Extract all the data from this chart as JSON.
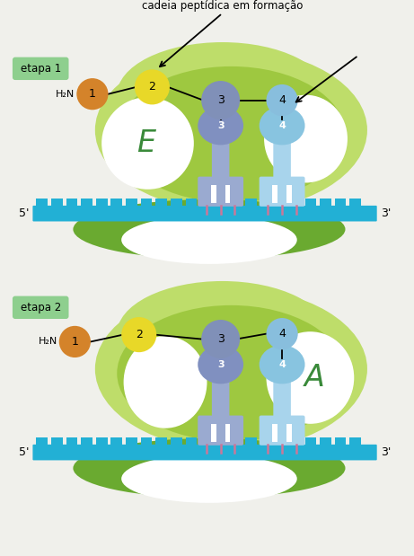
{
  "bg_color": "#f0f0eb",
  "title_text": "cadeia peptídica em formação",
  "etapa1_label": "etapa 1",
  "etapa2_label": "etapa 2",
  "label_bg": "#8ecf8e",
  "ribosome_outer": "#bedd6a",
  "ribosome_inner": "#9ec840",
  "mRNA_color": "#22b0d5",
  "bottom_color": "#6aaa30",
  "tRNA1_body": "#8090c0",
  "tRNA1_stem": "#9aaad0",
  "tRNA2_body": "#88c4e0",
  "tRNA2_stem": "#a8d4ec",
  "foot_color": "#cc7799",
  "aa1_color": "#d4832a",
  "aa2_color": "#e8d828",
  "aa3_color": "#8090b8",
  "aa4_color": "#88bedd",
  "white_color": "#ffffff",
  "E_color": "#3a8a3a",
  "A_color": "#3a8a3a",
  "line_color": "#111111",
  "five_prime": "5'",
  "three_prime": "3'",
  "H2N": "H₂N"
}
